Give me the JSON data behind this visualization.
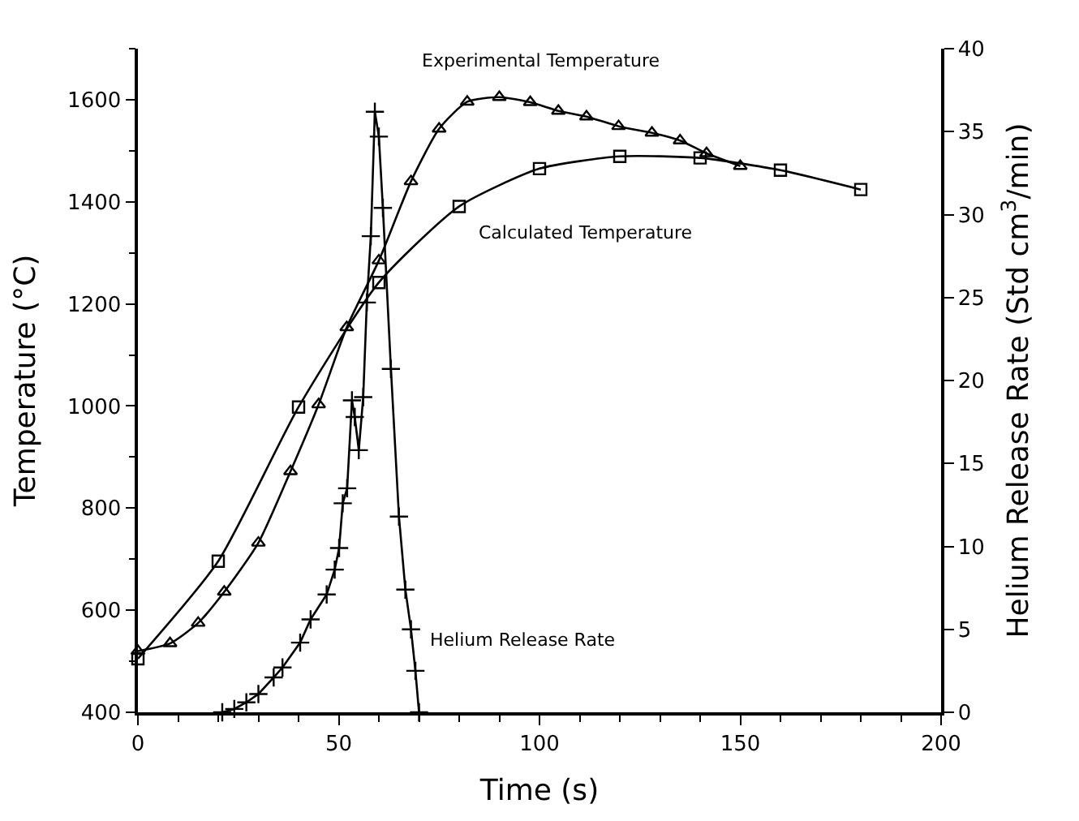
{
  "chart_data": {
    "type": "line",
    "xlabel": "Time (s)",
    "ylabel": "Temperature (°C)",
    "y2label": "Helium Release Rate (Std cm$^{3}$/min)",
    "xlim": [
      0,
      200
    ],
    "xticks": [
      0,
      50,
      100,
      150,
      200
    ],
    "ylim": [
      400,
      1700
    ],
    "yticks": [
      400,
      600,
      800,
      1000,
      1200,
      1400,
      1600
    ],
    "y2lim": [
      0,
      40
    ],
    "y2ticks": [
      0,
      5,
      10,
      15,
      20,
      25,
      30,
      35,
      40
    ],
    "legend": false,
    "line_style": "solid",
    "series": [
      {
        "name": "Experimental Temperature",
        "color": "#000000",
        "marker": "triangle",
        "x": [
          0,
          8,
          15,
          21.5,
          30,
          38,
          45,
          52,
          60,
          68,
          75,
          82,
          90,
          97.7,
          104.7,
          111.7,
          119.7,
          128,
          135,
          141.6,
          150
        ],
        "values": [
          520,
          535,
          575,
          636,
          732,
          872,
          1003,
          1154,
          1285,
          1440,
          1543,
          1596,
          1605,
          1595,
          1578,
          1567,
          1548,
          1535,
          1520,
          1495,
          1470
        ]
      },
      {
        "name": "Calculated Temperature",
        "color": "#000000",
        "marker": "square",
        "x": [
          0,
          20,
          40,
          60,
          80,
          100,
          120,
          140,
          160,
          180
        ],
        "values": [
          505,
          696,
          998,
          1242,
          1391,
          1465,
          1489,
          1486,
          1462,
          1424
        ]
      },
      {
        "name": "Helium Release Rate",
        "color": "#000000",
        "marker": "cross",
        "axis": "y2",
        "x": [
          21,
          24,
          27,
          30,
          33.8,
          36,
          40.4,
          43,
          47,
          49,
          50.1,
          51,
          52.1,
          53.3,
          54,
          55,
          56.1,
          57,
          58,
          59,
          60,
          61,
          63,
          65,
          66.6,
          68,
          69.1,
          70
        ],
        "values": [
          0,
          0.2,
          0.6,
          1.1,
          2.1,
          2.7,
          4.2,
          5.6,
          7.1,
          8.6,
          9.9,
          12.6,
          13.5,
          18.8,
          17.8,
          15.8,
          19.0,
          24.7,
          28.7,
          36.2,
          34.7,
          30.4,
          20.7,
          11.8,
          7.4,
          5.0,
          2.5,
          0
        ]
      }
    ]
  }
}
